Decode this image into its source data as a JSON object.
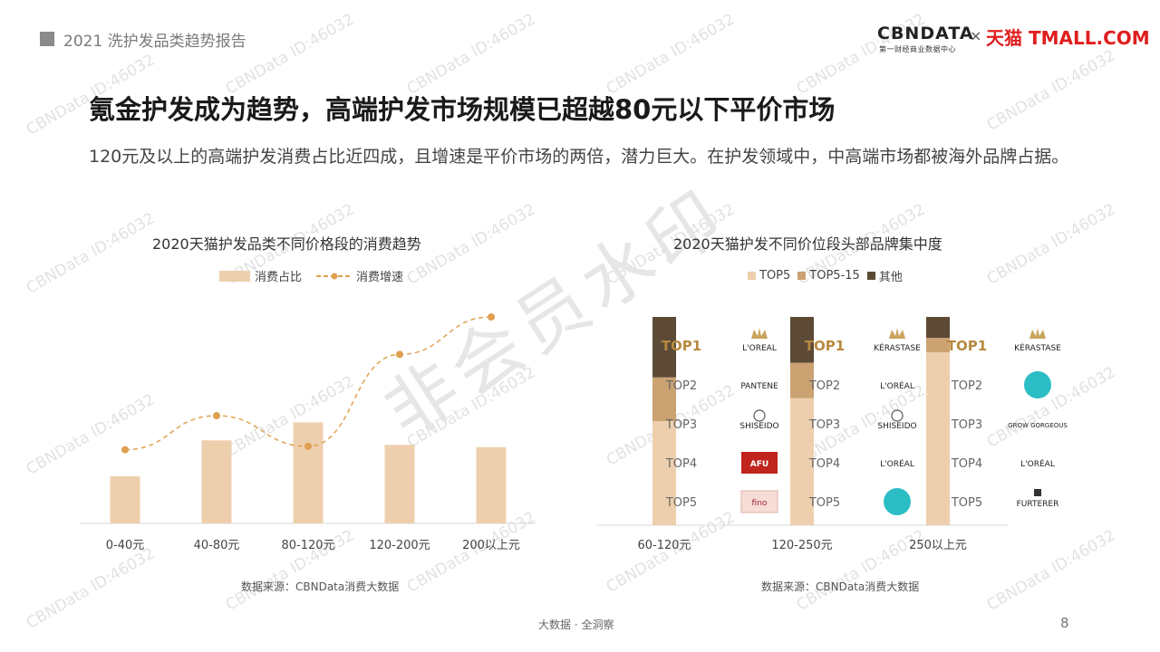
{
  "header": {
    "report_title": "2021 洗护发品类趋势报告",
    "logo_cbn": "CBNDATA",
    "logo_cbn_sub": "第一财经商业数据中心",
    "logo_times": "×",
    "logo_tmall": "天猫 TMALL.COM"
  },
  "title": "氪金护发成为趋势，高端护发市场规模已超越80元以下平价市场",
  "subtitle": "120元及以上的高端护发消费占比近四成，且增速是平价市场的两倍，潜力巨大。在护发领域中，中高端市场都被海外品牌占据。",
  "watermark": {
    "small": "CBNData ID:46032",
    "big": "非会员水印"
  },
  "chart_data": [
    {
      "type": "bar",
      "title": "2020天猫护发品类不同价格段的消费趋势",
      "categories": [
        "0-40元",
        "40-80元",
        "80-120元",
        "120-200元",
        "200以上元"
      ],
      "series": [
        {
          "name": "消费占比",
          "kind": "bar",
          "color": "#eecfad",
          "values": [
            0.21,
            0.37,
            0.45,
            0.35,
            0.34
          ]
        },
        {
          "name": "消费增速",
          "kind": "line-dashed",
          "color": "#e0a050",
          "values": [
            0.22,
            0.42,
            0.24,
            0.78,
            1.0
          ]
        }
      ],
      "source": "数据来源：CBNData消费大数据"
    },
    {
      "type": "bar",
      "stacked": true,
      "title": "2020天猫护发不同价位段头部品牌集中度",
      "categories": [
        "60-120元",
        "120-250元",
        "250以上元"
      ],
      "series": [
        {
          "name": "TOP5",
          "color": "#eecfad",
          "values": [
            0.5,
            0.61,
            0.83
          ]
        },
        {
          "name": "TOP5-15",
          "color": "#cba272",
          "values": [
            0.21,
            0.17,
            0.07
          ]
        },
        {
          "name": "其他",
          "color": "#5c4a37",
          "values": [
            0.29,
            0.22,
            0.1
          ]
        }
      ],
      "rank_labels": [
        "TOP1",
        "TOP2",
        "TOP3",
        "TOP4",
        "TOP5"
      ],
      "brand_columns": [
        {
          "brands": [
            "L'OREAL",
            "PANTENE",
            "SHISEIDO",
            "AFU",
            "fino"
          ],
          "icons": [
            "crown-icon",
            "",
            "shiseido-emblem-icon",
            "afu-logo-icon",
            "fino-logo-icon"
          ]
        },
        {
          "brands": [
            "KÉRASTASE",
            "L'ORÉAL",
            "SHISEIDO",
            "L'ORÉAL",
            ""
          ],
          "icons": [
            "crown-icon",
            "",
            "shiseido-emblem-icon",
            "",
            "moroccanoil-logo-icon"
          ]
        },
        {
          "brands": [
            "KÉRASTASE",
            "",
            "GROW GORGEOUS",
            "L'ORÉAL",
            "FURTERER"
          ],
          "icons": [
            "crown-icon",
            "moroccanoil-logo-icon",
            "",
            "",
            "furterer-logo-icon"
          ]
        }
      ],
      "source": "数据来源：CBNData消费大数据"
    }
  ],
  "footer": {
    "tagline": "大数据 · 全洞察",
    "page": "8"
  }
}
